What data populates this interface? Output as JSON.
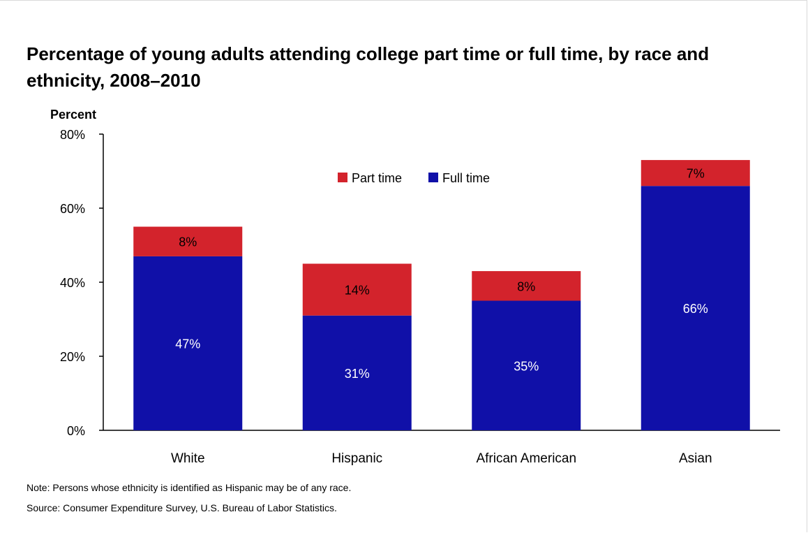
{
  "chart_data": {
    "type": "bar",
    "stacked": true,
    "title": "Percentage of young adults attending college part time or full time, by race and ethnicity, 2008–2010",
    "ylabel": "Percent",
    "ylim": [
      0,
      80
    ],
    "yticks": [
      "0%",
      "20%",
      "40%",
      "60%",
      "80%"
    ],
    "categories": [
      "White",
      "Hispanic",
      "African American",
      "Asian"
    ],
    "series": [
      {
        "name": "Full time",
        "color": "#1010a8",
        "values": [
          47,
          31,
          35,
          66
        ],
        "labels": [
          "47%",
          "31%",
          "35%",
          "66%"
        ]
      },
      {
        "name": "Part time",
        "color": "#d3232c",
        "values": [
          8,
          14,
          8,
          7
        ],
        "labels": [
          "8%",
          "14%",
          "8%",
          "7%"
        ]
      }
    ],
    "legend": {
      "placement": "top-center",
      "order": [
        "Part time",
        "Full time"
      ]
    },
    "grid": false
  },
  "notes": {
    "note": "Note: Persons whose ethnicity is identified as Hispanic may be of any race.",
    "source": "Source: Consumer Expenditure Survey, U.S. Bureau of Labor Statistics."
  }
}
